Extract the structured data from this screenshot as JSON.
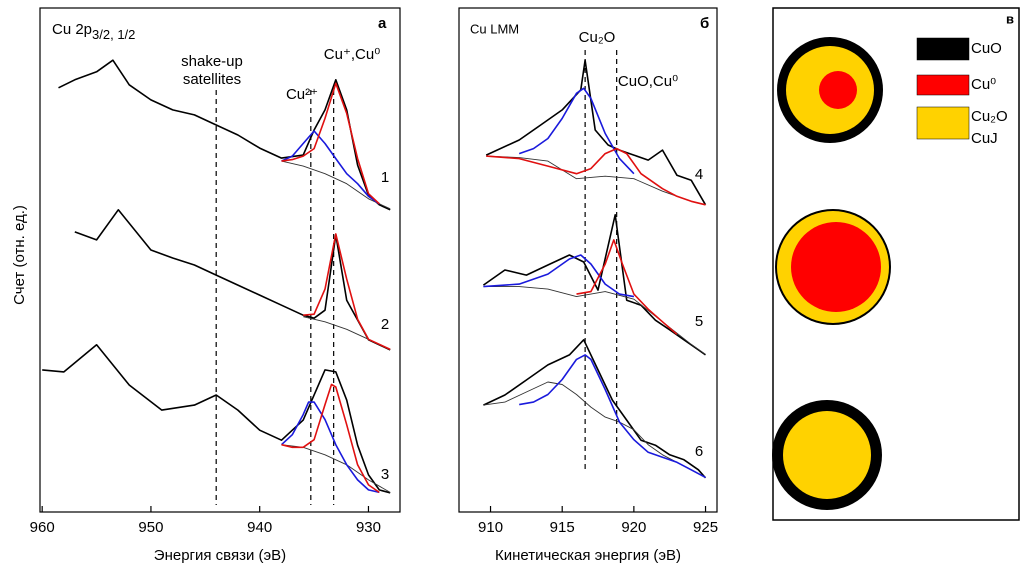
{
  "chart_data": [
    {
      "type": "line",
      "title": "Cu 2p",
      "title_sub": "3/2, 1/2",
      "panel_label": "а",
      "xlabel": "Энергия связи (эВ)",
      "ylabel": "Счет (отн. ед.)",
      "xlim": [
        960.2,
        927.1
      ],
      "xticks": [
        960,
        950,
        940,
        930
      ],
      "ylim": [
        0,
        100
      ],
      "vlines": [
        944,
        935.3,
        933.2
      ],
      "annotations": [
        "shake-up",
        "satellites",
        "Cu²⁺",
        "Cu⁺,Cu⁰",
        "1",
        "2",
        "3"
      ],
      "series": [
        {
          "color": "#000000",
          "x": [
            958.5,
            957,
            955,
            953.5,
            952,
            950,
            948,
            946,
            944,
            942,
            940,
            938,
            936,
            935,
            934,
            933,
            932,
            931,
            930,
            929,
            928
          ],
          "values": [
            84.1,
            85.7,
            87.3,
            89.6,
            84.7,
            81.7,
            79.7,
            78.7,
            76.7,
            74.7,
            72.1,
            70.1,
            70.7,
            75.7,
            79.7,
            85.7,
            79.7,
            68.7,
            62.7,
            60.8,
            59.8
          ]
        },
        {
          "color": "#333333",
          "x": [
            938,
            936,
            934,
            932,
            930,
            928
          ],
          "values": [
            69.5,
            68.5,
            67,
            65,
            62,
            60
          ]
        },
        {
          "color": "#1a1adc",
          "x": [
            938,
            937,
            936,
            935,
            934,
            933,
            932,
            931,
            930,
            929
          ],
          "values": [
            69.5,
            70.5,
            73,
            75.5,
            73,
            70,
            67,
            65,
            62.5,
            61
          ]
        },
        {
          "color": "#e01010",
          "x": [
            938,
            937,
            936,
            935,
            934,
            933,
            932,
            931,
            930,
            929
          ],
          "values": [
            69.5,
            69.8,
            70.5,
            72,
            78,
            85,
            79,
            70,
            63,
            61
          ]
        },
        {
          "color": "#000000",
          "x": [
            957,
            955,
            953,
            950,
            948,
            946,
            944,
            942,
            940,
            938,
            936,
            935,
            934,
            933,
            932,
            930,
            928
          ],
          "values": [
            55.4,
            53.8,
            59.8,
            51.8,
            50.2,
            48.8,
            46.8,
            44.8,
            42.8,
            40.8,
            38.8,
            38.2,
            39.8,
            54.8,
            41.8,
            33.9,
            31.9
          ]
        },
        {
          "color": "#333333",
          "x": [
            936,
            934,
            932,
            930,
            928
          ],
          "values": [
            38.5,
            37.5,
            36,
            34,
            32
          ]
        },
        {
          "color": "#e01010",
          "x": [
            936,
            935,
            934,
            933,
            932,
            931,
            930,
            929,
            928
          ],
          "values": [
            38.8,
            39,
            44,
            55,
            46,
            38,
            34,
            33,
            32
          ]
        },
        {
          "color": "#000000",
          "x": [
            960,
            958,
            955,
            952,
            949,
            946,
            944,
            942,
            940,
            938,
            936,
            934,
            933,
            932,
            931,
            930,
            929,
            928
          ],
          "values": [
            27.9,
            27.5,
            32.9,
            24.9,
            19.9,
            20.9,
            22.9,
            19.9,
            15.9,
            13.9,
            17.9,
            27.9,
            27.5,
            21.9,
            12.9,
            7.0,
            4.0,
            3.4
          ]
        },
        {
          "color": "#333333",
          "x": [
            938,
            936,
            934,
            932,
            930,
            928
          ],
          "values": [
            13,
            12.5,
            11,
            9,
            6,
            3.5
          ]
        },
        {
          "color": "#1a1adc",
          "x": [
            938,
            937,
            936,
            935.5,
            935,
            934,
            933,
            932,
            931,
            930,
            929
          ],
          "values": [
            13,
            15,
            19,
            21.5,
            21.5,
            18,
            13,
            9,
            6,
            4,
            3.5
          ]
        },
        {
          "color": "#e01010",
          "x": [
            938,
            937,
            936,
            935,
            934,
            933.4,
            933,
            932,
            931,
            930,
            929
          ],
          "values": [
            13,
            12.5,
            12.5,
            14,
            21,
            25,
            24.5,
            17,
            9,
            5,
            3.5
          ]
        }
      ]
    },
    {
      "type": "line",
      "title": "Cu LMM",
      "panel_label": "б",
      "xlabel": "Кинетическая энергия (эВ)",
      "xlim": [
        907.8,
        925.8
      ],
      "xticks": [
        910,
        915,
        920,
        925
      ],
      "ylim": [
        0,
        100
      ],
      "vlines": [
        916.6,
        918.8
      ],
      "annotations": [
        "Cu₂O",
        "CuO,Cu⁰",
        "4",
        "5",
        "6"
      ],
      "series": [
        {
          "color": "#000000",
          "x": [
            909.7,
            912,
            913.5,
            915,
            916.3,
            916.6,
            917.3,
            918.2,
            919,
            920,
            921,
            922,
            923,
            924,
            925
          ],
          "values": [
            70.7,
            73.7,
            76.7,
            79.7,
            83.7,
            89.6,
            75.7,
            72.7,
            71.7,
            70.7,
            69.7,
            71.7,
            66.7,
            65.7,
            60.8
          ]
        },
        {
          "color": "#333333",
          "x": [
            909.7,
            912,
            914,
            916,
            918,
            920,
            922,
            924,
            925
          ],
          "values": [
            70.5,
            70.2,
            69.5,
            66,
            66.5,
            66,
            63.5,
            61.5,
            60.8
          ]
        },
        {
          "color": "#1a1adc",
          "x": [
            912,
            913,
            914,
            915,
            916,
            916.5,
            917,
            918,
            919,
            920
          ],
          "values": [
            71,
            72,
            74,
            78,
            83,
            84,
            82,
            75,
            70,
            67
          ]
        },
        {
          "color": "#e01010",
          "x": [
            909.7,
            912,
            914,
            916,
            917,
            918,
            918.8,
            919.5,
            920.5,
            922,
            923,
            924,
            925
          ],
          "values": [
            70.5,
            70,
            68.5,
            67,
            68,
            71,
            72,
            71,
            67,
            64,
            62.5,
            61.5,
            60.8
          ]
        },
        {
          "color": "#000000",
          "x": [
            909.5,
            911,
            912.5,
            914,
            915.5,
            916.5,
            917.5,
            918.7,
            919.5,
            920.5,
            921.5,
            922.5,
            923.5,
            924.5,
            925
          ],
          "values": [
            44.8,
            47.8,
            46.8,
            48.8,
            50.8,
            49.4,
            43.8,
            58.8,
            41.8,
            40.8,
            37.8,
            35.9,
            33.9,
            31.9,
            30.9
          ]
        },
        {
          "color": "#333333",
          "x": [
            909.5,
            912,
            914,
            916,
            918,
            920,
            922,
            924,
            925
          ],
          "values": [
            44.5,
            44.5,
            44,
            42.5,
            43.5,
            42,
            37.5,
            33,
            31
          ]
        },
        {
          "color": "#1a1adc",
          "x": [
            909.5,
            912,
            914,
            915.5,
            916.3,
            917,
            918,
            919,
            920
          ],
          "values": [
            44.5,
            45,
            47,
            50,
            50.8,
            49,
            45,
            43,
            42.5
          ]
        },
        {
          "color": "#e01010",
          "x": [
            916,
            917,
            918,
            918.6,
            919.2,
            920,
            921,
            922,
            923
          ],
          "values": [
            43,
            43.5,
            49,
            53.8,
            49,
            43,
            40,
            37.5,
            35
          ]
        },
        {
          "color": "#000000",
          "x": [
            909.5,
            911,
            912.5,
            914,
            915.5,
            916.5,
            917.5,
            918.5,
            919.5,
            920.5,
            921.5,
            922.5,
            923.5,
            924.5,
            925
          ],
          "values": [
            20.9,
            22.9,
            25.9,
            28.9,
            30.9,
            33.9,
            27.9,
            21.9,
            17.9,
            13.9,
            12.9,
            11.0,
            10.0,
            8.0,
            6.4
          ]
        },
        {
          "color": "#333333",
          "x": [
            909.5,
            911,
            912.5,
            914,
            915,
            916,
            917,
            918,
            919,
            920,
            921,
            922,
            923,
            924,
            925
          ],
          "values": [
            20.9,
            21.5,
            23.5,
            25.5,
            25,
            23,
            20.5,
            18.5,
            17.5,
            16,
            13,
            11,
            9.5,
            8,
            6.5
          ]
        },
        {
          "color": "#1a1adc",
          "x": [
            912,
            913,
            914,
            915,
            916,
            916.6,
            917,
            918,
            919,
            920,
            921,
            922,
            923,
            924,
            925
          ],
          "values": [
            21,
            21.5,
            23,
            26,
            30,
            30.9,
            30,
            24,
            17.5,
            14,
            11.5,
            10.5,
            9.5,
            8,
            6.5
          ]
        }
      ]
    }
  ],
  "diagram": {
    "panel_label": "в",
    "legend": [
      {
        "name": "CuO",
        "color": "#000000"
      },
      {
        "name": "Cu⁰",
        "color": "#ff0000"
      },
      {
        "name": "Cu₂O",
        "name2": "CuJ",
        "color": "#ffd200"
      }
    ]
  }
}
